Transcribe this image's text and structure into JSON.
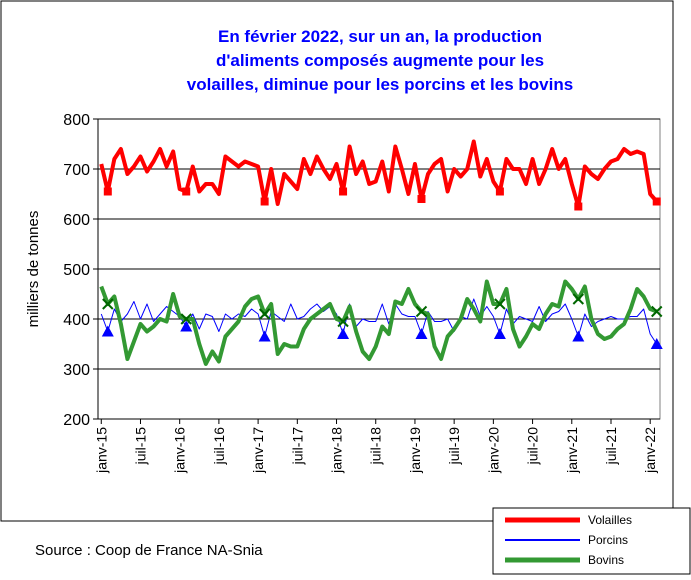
{
  "chart_data": {
    "type": "line",
    "title": [
      "En février 2022, sur un an, la production",
      "d'aliments composés augmente pour les",
      "volailles, diminue pour les porcins et les bovins"
    ],
    "ylabel": "milliers de tonnes",
    "source": "Source : Coop de France NA-Snia",
    "categories": [
      "janv-15",
      null,
      null,
      null,
      null,
      null,
      "juil-15",
      null,
      null,
      null,
      null,
      null,
      "janv-16",
      null,
      null,
      null,
      null,
      null,
      "juil-16",
      null,
      null,
      null,
      null,
      null,
      "janv-17",
      null,
      null,
      null,
      null,
      null,
      "juil-17",
      null,
      null,
      null,
      null,
      null,
      "janv-18",
      null,
      null,
      null,
      null,
      null,
      "juil-18",
      null,
      null,
      null,
      null,
      null,
      "janv-19",
      null,
      null,
      null,
      null,
      null,
      "juil-19",
      null,
      null,
      null,
      null,
      null,
      "janv-20",
      null,
      null,
      null,
      null,
      null,
      "juil-20",
      null,
      null,
      null,
      null,
      null,
      "janv-21",
      null,
      null,
      null,
      null,
      null,
      "juil-21",
      null,
      null,
      null,
      null,
      null,
      "janv-22",
      null
    ],
    "series": [
      {
        "name": "Volailles",
        "color": "#ff0000",
        "width": 4,
        "marker": "square",
        "values": [
          710,
          655,
          720,
          740,
          690,
          705,
          725,
          695,
          715,
          740,
          705,
          735,
          660,
          655,
          705,
          655,
          670,
          670,
          650,
          725,
          715,
          705,
          715,
          710,
          705,
          635,
          700,
          630,
          690,
          675,
          660,
          720,
          690,
          725,
          700,
          680,
          710,
          655,
          745,
          690,
          715,
          670,
          675,
          715,
          655,
          745,
          700,
          650,
          710,
          640,
          690,
          710,
          720,
          655,
          700,
          685,
          700,
          755,
          685,
          720,
          675,
          655,
          720,
          700,
          700,
          670,
          720,
          670,
          700,
          740,
          700,
          720,
          670,
          625,
          705,
          690,
          680,
          700,
          715,
          720,
          740,
          730,
          735,
          730,
          650,
          635
        ]
      },
      {
        "name": "Porcins",
        "color": "#0000ff",
        "width": 1,
        "marker": "triangle",
        "values": [
          410,
          375,
          420,
          395,
          410,
          435,
          400,
          430,
          395,
          410,
          425,
          415,
          405,
          385,
          410,
          380,
          410,
          405,
          375,
          410,
          400,
          410,
          405,
          420,
          410,
          365,
          415,
          405,
          395,
          430,
          400,
          405,
          420,
          430,
          415,
          425,
          410,
          370,
          430,
          385,
          400,
          395,
          395,
          430,
          390,
          430,
          410,
          405,
          405,
          370,
          415,
          395,
          395,
          400,
          375,
          405,
          400,
          440,
          405,
          425,
          405,
          370,
          420,
          390,
          405,
          400,
          395,
          425,
          395,
          410,
          415,
          430,
          400,
          365,
          410,
          385,
          395,
          400,
          405,
          400,
          400,
          405,
          405,
          420,
          370,
          350
        ]
      },
      {
        "name": "Bovins",
        "color": "#339933",
        "width": 4,
        "marker": "x",
        "values": [
          465,
          430,
          445,
          390,
          320,
          355,
          390,
          375,
          385,
          400,
          395,
          450,
          405,
          400,
          400,
          350,
          310,
          335,
          315,
          365,
          380,
          395,
          425,
          440,
          445,
          410,
          430,
          330,
          350,
          345,
          345,
          380,
          400,
          410,
          420,
          430,
          400,
          395,
          425,
          375,
          335,
          320,
          345,
          385,
          370,
          435,
          430,
          460,
          430,
          415,
          410,
          345,
          320,
          365,
          380,
          400,
          440,
          420,
          395,
          475,
          430,
          430,
          460,
          380,
          345,
          365,
          390,
          380,
          410,
          430,
          425,
          475,
          460,
          440,
          465,
          400,
          370,
          360,
          365,
          380,
          390,
          420,
          460,
          445,
          420,
          415
        ]
      }
    ],
    "ylim": [
      200,
      800
    ],
    "yticks": [
      200,
      300,
      400,
      500,
      600,
      700,
      800
    ],
    "grid": true
  }
}
